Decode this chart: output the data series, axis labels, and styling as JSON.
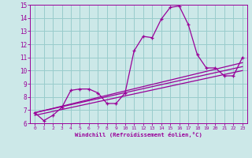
{
  "bg_color": "#cce8e8",
  "line_color": "#990099",
  "grid_color": "#99cccc",
  "axis_label_color": "#990099",
  "tick_color": "#990099",
  "xlabel": "Windchill (Refroidissement éolien,°C)",
  "xlim": [
    -0.5,
    23.5
  ],
  "ylim": [
    6,
    15
  ],
  "yticks": [
    6,
    7,
    8,
    9,
    10,
    11,
    12,
    13,
    14,
    15
  ],
  "xticks": [
    0,
    1,
    2,
    3,
    4,
    5,
    6,
    7,
    8,
    9,
    10,
    11,
    12,
    13,
    14,
    15,
    16,
    17,
    18,
    19,
    20,
    21,
    22,
    23
  ],
  "main_x": [
    0,
    1,
    2,
    3,
    4,
    5,
    6,
    7,
    8,
    9,
    10,
    11,
    12,
    13,
    14,
    15,
    16,
    17,
    18,
    19,
    20,
    21,
    22,
    23
  ],
  "main_y": [
    6.8,
    6.2,
    6.6,
    7.2,
    8.5,
    8.6,
    8.6,
    8.3,
    7.5,
    7.5,
    8.3,
    11.5,
    12.6,
    12.5,
    13.9,
    14.8,
    14.9,
    13.5,
    11.2,
    10.2,
    10.2,
    9.6,
    9.6,
    11.0
  ],
  "reg_lines": [
    {
      "x0": 0,
      "y0": 6.8,
      "x1": 23,
      "y1": 10.6
    },
    {
      "x0": 0,
      "y0": 6.8,
      "x1": 23,
      "y1": 10.3
    },
    {
      "x0": 0,
      "y0": 6.6,
      "x1": 23,
      "y1": 10.0
    }
  ]
}
